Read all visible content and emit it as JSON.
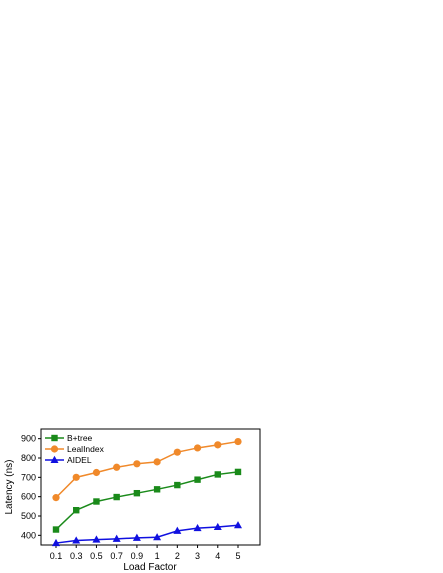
{
  "chart_data": {
    "type": "line",
    "xlabel": "Load Factor",
    "ylabel": "Latency (ns)",
    "categories": [
      "0.1",
      "0.3",
      "0.5",
      "0.7",
      "0.9",
      "1",
      "2",
      "3",
      "4",
      "5"
    ],
    "y_ticks": [
      "400",
      "500",
      "600",
      "700",
      "800",
      "900"
    ],
    "ylim": [
      350,
      950
    ],
    "grid": false,
    "legend_position": "top-left",
    "series": [
      {
        "name": "B+tree",
        "color": "#1a8a1a",
        "marker": "square",
        "values": [
          430,
          530,
          575,
          598,
          618,
          638,
          660,
          688,
          715,
          728
        ]
      },
      {
        "name": "LealIndex",
        "color": "#f0892a",
        "marker": "circle",
        "values": [
          595,
          700,
          725,
          752,
          770,
          780,
          830,
          852,
          868,
          885
        ]
      },
      {
        "name": "AIDEL",
        "color": "#1010e0",
        "marker": "triangle",
        "values": [
          360,
          373,
          378,
          382,
          387,
          390,
          423,
          437,
          443,
          452
        ]
      }
    ]
  }
}
